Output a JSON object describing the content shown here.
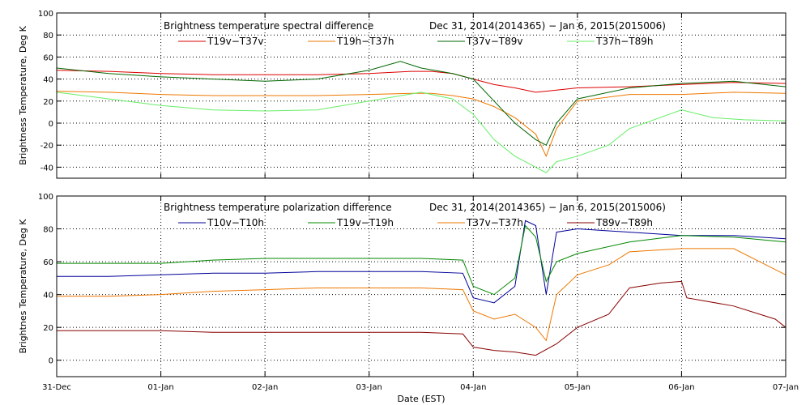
{
  "chart_data": [
    {
      "type": "line",
      "title": "Brightness temperature spectral difference",
      "date_range": "Dec 31, 2014(2014365) − Jan  6, 2015(2015006)",
      "ylabel": "Brightness Temperature, Deg K",
      "xlabel": "",
      "ylim": [
        -50,
        100
      ],
      "yticks": [
        -40,
        -20,
        0,
        20,
        40,
        60,
        80,
        100
      ],
      "xlim": [
        0,
        7
      ],
      "grid": true,
      "legend_placement": "top",
      "series": [
        {
          "name": "T19v−T37v",
          "color": "#dd0000",
          "x": [
            0,
            0.5,
            1,
            1.5,
            2,
            2.5,
            3,
            3.4,
            3.6,
            3.8,
            4.0,
            4.2,
            4.4,
            4.6,
            4.8,
            5.0,
            5.5,
            6.0,
            6.5,
            7.0
          ],
          "y": [
            48,
            47,
            45,
            44,
            44,
            44,
            45,
            47,
            47,
            45,
            40,
            35,
            32,
            28,
            30,
            32,
            33,
            35,
            37,
            36
          ]
        },
        {
          "name": "T19h−T37h",
          "color": "#ee7700",
          "x": [
            0,
            0.5,
            1,
            1.5,
            2,
            2.5,
            3,
            3.4,
            3.6,
            3.8,
            4.0,
            4.2,
            4.4,
            4.6,
            4.7,
            4.8,
            5.0,
            5.5,
            6.0,
            6.5,
            7.0
          ],
          "y": [
            29,
            28,
            26,
            25,
            25,
            25,
            26,
            27,
            27,
            25,
            22,
            15,
            5,
            -10,
            -30,
            -5,
            20,
            26,
            26,
            28,
            27
          ]
        },
        {
          "name": "T37v−T89v",
          "color": "#006600",
          "x": [
            0,
            0.5,
            1,
            1.5,
            2,
            2.5,
            3,
            3.3,
            3.5,
            3.8,
            4.0,
            4.2,
            4.4,
            4.6,
            4.7,
            4.8,
            5.0,
            5.5,
            6.0,
            6.5,
            7.0
          ],
          "y": [
            50,
            45,
            42,
            40,
            38,
            40,
            48,
            56,
            50,
            45,
            40,
            20,
            0,
            -15,
            -20,
            0,
            22,
            32,
            36,
            38,
            33
          ]
        },
        {
          "name": "T37h−T89h",
          "color": "#66ee66",
          "x": [
            0,
            0.5,
            1,
            1.5,
            2,
            2.5,
            3,
            3.5,
            3.8,
            4.0,
            4.2,
            4.4,
            4.6,
            4.7,
            4.8,
            5.0,
            5.3,
            5.5,
            6.0,
            6.3,
            6.6,
            7.0
          ],
          "y": [
            28,
            22,
            16,
            12,
            11,
            12,
            20,
            28,
            22,
            8,
            -15,
            -30,
            -40,
            -45,
            -35,
            -30,
            -20,
            -5,
            12,
            5,
            3,
            2
          ]
        }
      ]
    },
    {
      "type": "line",
      "title": "Brightness temperature polarization difference",
      "date_range": "Dec 31, 2014(2014365) − Jan  6, 2015(2015006)",
      "ylabel": "Brightnes Temperature, Deg K",
      "xlabel": "Date (EST)",
      "ylim": [
        -10,
        100
      ],
      "yticks": [
        0,
        20,
        40,
        60,
        80,
        100
      ],
      "xlim": [
        0,
        7
      ],
      "xticks": [
        "31-Dec",
        "01-Jan",
        "02-Jan",
        "03-Jan",
        "04-Jan",
        "05-Jan",
        "06-Jan",
        "07-Jan"
      ],
      "grid": true,
      "legend_placement": "top",
      "series": [
        {
          "name": "T10v−T10h",
          "color": "#000099",
          "x": [
            0,
            0.5,
            1,
            1.5,
            2,
            2.5,
            3,
            3.5,
            3.9,
            4.0,
            4.2,
            4.4,
            4.5,
            4.6,
            4.7,
            4.8,
            5.0,
            5.5,
            6.0,
            6.5,
            7.0
          ],
          "y": [
            51,
            51,
            52,
            53,
            53,
            54,
            54,
            54,
            53,
            38,
            35,
            45,
            85,
            82,
            40,
            78,
            80,
            78,
            76,
            76,
            74
          ]
        },
        {
          "name": "T19v−T19h",
          "color": "#008800",
          "x": [
            0,
            0.5,
            1,
            1.5,
            2,
            2.5,
            3,
            3.5,
            3.9,
            4.0,
            4.2,
            4.4,
            4.5,
            4.6,
            4.7,
            4.8,
            5.0,
            5.5,
            6.0,
            6.5,
            7.0
          ],
          "y": [
            59,
            59,
            59,
            61,
            62,
            62,
            62,
            62,
            61,
            45,
            40,
            50,
            82,
            75,
            48,
            60,
            65,
            72,
            76,
            75,
            72
          ]
        },
        {
          "name": "T37v−T37h",
          "color": "#ee7700",
          "x": [
            0,
            0.5,
            1,
            1.5,
            2,
            2.5,
            3,
            3.5,
            3.9,
            4.0,
            4.2,
            4.4,
            4.6,
            4.7,
            4.8,
            5.0,
            5.3,
            5.5,
            6.0,
            6.5,
            7.0
          ],
          "y": [
            39,
            39,
            40,
            42,
            43,
            44,
            44,
            44,
            43,
            30,
            25,
            28,
            20,
            12,
            40,
            52,
            58,
            66,
            68,
            68,
            52
          ]
        },
        {
          "name": "T89v−T89h",
          "color": "#880000",
          "x": [
            0,
            0.5,
            1,
            1.5,
            2,
            2.5,
            3,
            3.5,
            3.9,
            4.0,
            4.2,
            4.4,
            4.6,
            4.8,
            5.0,
            5.3,
            5.5,
            5.8,
            6.0,
            6.05,
            6.5,
            6.9,
            7.0
          ],
          "y": [
            18,
            18,
            18,
            17,
            17,
            17,
            17,
            17,
            16,
            8,
            6,
            5,
            3,
            10,
            20,
            28,
            44,
            47,
            48,
            38,
            33,
            25,
            20
          ]
        }
      ]
    }
  ]
}
